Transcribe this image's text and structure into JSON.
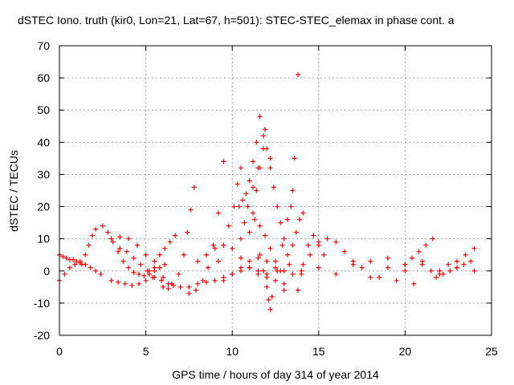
{
  "chart_data": {
    "type": "scatter",
    "title": "dSTEC Iono. truth (kir0, Lon=21, Lat=67, h=501): STEC-STEC_elemax in phase cont. a",
    "xlabel": "GPS time / hours of day 314 of year 2014",
    "ylabel": "dSTEC  / TECUs",
    "xlim": [
      0,
      25
    ],
    "ylim": [
      -20,
      70
    ],
    "xticks": [
      0,
      5,
      10,
      15,
      20,
      25
    ],
    "yticks": [
      -20,
      -10,
      0,
      10,
      20,
      30,
      40,
      50,
      60,
      70
    ],
    "grid": true,
    "marker": "plus",
    "color": "#ff0000",
    "series": [
      {
        "x": [
          0.0,
          0.3,
          0.6,
          0.9,
          1.2,
          1.5,
          1.8,
          2.1,
          2.4
        ],
        "y": [
          -3,
          -1,
          1,
          2,
          3,
          2,
          1,
          0,
          -1
        ]
      },
      {
        "x": [
          0.0,
          0.2,
          0.4,
          0.6,
          0.8,
          1.0,
          1.2
        ],
        "y": [
          5,
          4.5,
          4,
          3.5,
          3.5,
          3,
          2.5
        ]
      },
      {
        "x": [
          1.3,
          1.5,
          1.7,
          1.9,
          2.1
        ],
        "y": [
          2,
          5,
          8,
          11,
          13
        ]
      },
      {
        "x": [
          2.5,
          2.8,
          3.1,
          3.4,
          3.7,
          4.0,
          4.3,
          4.6,
          4.9,
          5.2,
          5.5,
          5.8,
          6.1
        ],
        "y": [
          14,
          12,
          9,
          6,
          3,
          1,
          -0.5,
          -1,
          -1.5,
          -1,
          0,
          1,
          2
        ]
      },
      {
        "x": [
          3.0,
          3.5,
          4.0,
          4.5,
          5.0,
          5.5,
          6.0,
          6.5,
          7.0
        ],
        "y": [
          10,
          10.5,
          10,
          8,
          5,
          1,
          -2,
          -4,
          -5
        ]
      },
      {
        "x": [
          3.5,
          3.9,
          4.3,
          4.7,
          5.1,
          5.5,
          5.9,
          6.3
        ],
        "y": [
          7,
          6,
          4,
          2,
          0,
          -2,
          -3,
          -4
        ]
      },
      {
        "x": [
          3.0,
          3.4,
          3.8,
          4.2,
          4.6,
          5.0,
          5.4
        ],
        "y": [
          -3,
          -3.5,
          -4,
          -4.5,
          -4,
          -3,
          -2
        ]
      },
      {
        "x": [
          5.2,
          5.5,
          5.8,
          6.1,
          6.4,
          6.7
        ],
        "y": [
          0,
          3,
          5,
          7,
          9,
          11
        ]
      },
      {
        "x": [
          6.0,
          6.3,
          6.6,
          6.9,
          7.2,
          7.4,
          7.6,
          7.8
        ],
        "y": [
          -5,
          -5.5,
          -4.5,
          -1,
          5,
          12,
          19,
          26
        ]
      },
      {
        "x": [
          7.5,
          7.9,
          8.3,
          8.6,
          8.9,
          9.2,
          9.5
        ],
        "y": [
          -7,
          -6,
          -3,
          1,
          8,
          18,
          34
        ]
      },
      {
        "x": [
          7.5,
          8.0,
          8.5,
          9.0,
          9.5,
          10.0,
          10.5,
          11.0,
          11.5,
          12.0
        ],
        "y": [
          -5,
          -4,
          -3.5,
          -3,
          -2,
          -1,
          0,
          1,
          0,
          -1
        ]
      },
      {
        "x": [
          8.0,
          8.5,
          9.0,
          9.5,
          10.0,
          10.5,
          11.0,
          11.5,
          12.0,
          12.5,
          13.0
        ],
        "y": [
          3,
          5,
          7,
          8,
          7,
          4,
          1,
          -1,
          -2,
          -3,
          -4
        ]
      },
      {
        "x": [
          9.2,
          9.5,
          9.8,
          10.1,
          10.3,
          10.5
        ],
        "y": [
          3,
          8,
          14,
          20,
          27,
          32
        ]
      },
      {
        "x": [
          9.5,
          10.0,
          10.5,
          11.0,
          11.5,
          12.0,
          12.5,
          13.0,
          13.5,
          14.0
        ],
        "y": [
          -3,
          -1,
          1,
          3,
          4,
          3,
          1,
          0,
          -1,
          -1
        ]
      },
      {
        "x": [
          10.4,
          10.6,
          10.8,
          11.0,
          11.2,
          11.4,
          11.6,
          11.9,
          12.2
        ],
        "y": [
          20,
          22,
          24,
          28,
          34,
          40,
          48,
          44,
          35
        ]
      },
      {
        "x": [
          10.5,
          10.7,
          10.9,
          11.2,
          11.5,
          11.8
        ],
        "y": [
          10,
          15,
          20,
          26,
          32,
          38
        ]
      },
      {
        "x": [
          11.0,
          11.2,
          11.4,
          11.6,
          11.8,
          12.0,
          12.2,
          12.4,
          12.6,
          12.8,
          13.0
        ],
        "y": [
          12,
          18,
          25,
          32,
          42,
          38,
          32,
          26,
          20,
          15,
          10
        ]
      },
      {
        "x": [
          11.3,
          11.6,
          11.9,
          12.2,
          12.5,
          12.8
        ],
        "y": [
          16,
          14,
          11,
          7,
          3,
          0
        ]
      },
      {
        "x": [
          11.6,
          11.8,
          12.0,
          12.1,
          12.2
        ],
        "y": [
          5,
          0,
          -5,
          -9,
          -12
        ]
      },
      {
        "x": [
          12.3,
          12.6,
          12.9,
          13.2,
          13.5
        ],
        "y": [
          -8,
          0,
          8,
          16,
          25
        ]
      },
      {
        "x": [
          13.0,
          13.2,
          13.4,
          13.6,
          13.8
        ],
        "y": [
          -6,
          5,
          20,
          35,
          61
        ]
      },
      {
        "x": [
          13.3,
          13.5,
          13.7,
          13.9,
          14.1
        ],
        "y": [
          2,
          8,
          12,
          16,
          18
        ]
      },
      {
        "x": [
          13.8,
          14.1,
          14.4,
          14.7,
          15.0,
          15.3
        ],
        "y": [
          -6,
          2,
          8,
          11,
          9,
          5
        ]
      },
      {
        "x": [
          14.5,
          15.0,
          15.5,
          16.0,
          16.5,
          17.0,
          17.5
        ],
        "y": [
          5,
          8,
          10,
          9,
          6,
          3,
          1
        ]
      },
      {
        "x": [
          14.0,
          15.0,
          16.0,
          17.0,
          18.0,
          19.0,
          20.0,
          21.0,
          22.0,
          23.0,
          24.0
        ],
        "y": [
          0,
          1,
          -1,
          2,
          -2,
          1,
          0,
          2,
          -1,
          1,
          0
        ]
      },
      {
        "x": [
          18.0,
          18.5,
          19.0,
          19.5,
          20.0,
          20.5,
          21.0,
          21.5
        ],
        "y": [
          3,
          -2,
          4,
          -3,
          2,
          -4,
          3,
          0
        ]
      },
      {
        "x": [
          20.0,
          20.4,
          20.8,
          21.2,
          21.6
        ],
        "y": [
          2,
          4,
          6,
          8,
          10
        ]
      },
      {
        "x": [
          22.0,
          22.5,
          23.0,
          23.5,
          24.0
        ],
        "y": [
          0,
          2,
          3,
          5,
          7
        ]
      },
      {
        "x": [
          21.8,
          22.2,
          22.6,
          23.0,
          23.4,
          23.8
        ],
        "y": [
          -2,
          -1,
          0,
          1,
          2,
          3
        ]
      }
    ]
  }
}
